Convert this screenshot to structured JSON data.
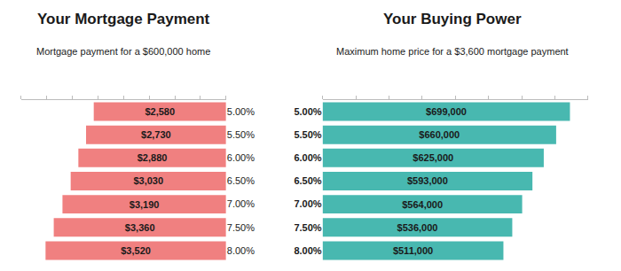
{
  "chart_data": [
    {
      "type": "bar",
      "orientation": "horizontal",
      "title": "Your Mortgage Payment",
      "subtitle": "Mortgage payment for a $600,000 home",
      "categories": [
        "5.00%",
        "5.50%",
        "6.00%",
        "6.50%",
        "7.00%",
        "7.50%",
        "8.00%"
      ],
      "values": [
        2580,
        2730,
        2880,
        3030,
        3190,
        3360,
        3520
      ],
      "value_labels": [
        "$2,580",
        "$2,730",
        "$2,880",
        "$3,030",
        "$3,190",
        "$3,360",
        "$3,520"
      ],
      "color": "#F08080",
      "xlim": [
        0,
        4000
      ],
      "xticks": [
        0,
        500,
        1000,
        1500,
        2000,
        2500,
        3000,
        3500,
        4000
      ],
      "data_labels": true,
      "tick_labels": "y",
      "grid": false
    },
    {
      "type": "bar",
      "orientation": "horizontal",
      "title": "Your Buying Power",
      "subtitle": "Maximum home price for a $3,600 mortgage payment",
      "categories": [
        "5.00%",
        "5.50%",
        "6.00%",
        "6.50%",
        "7.00%",
        "7.50%",
        "8.00%"
      ],
      "values": [
        699000,
        660000,
        625000,
        593000,
        564000,
        536000,
        511000
      ],
      "value_labels": [
        "$699,000",
        "$660,000",
        "$625,000",
        "$593,000",
        "$564,000",
        "$536,000",
        "$511,000"
      ],
      "color": "#48B8B0",
      "xlim": [
        0,
        750000
      ],
      "xticks": [
        0,
        93750,
        187500,
        281250,
        375000,
        468750,
        562500,
        656250,
        750000
      ],
      "data_labels": true,
      "tick_labels": "y",
      "grid": false
    }
  ]
}
